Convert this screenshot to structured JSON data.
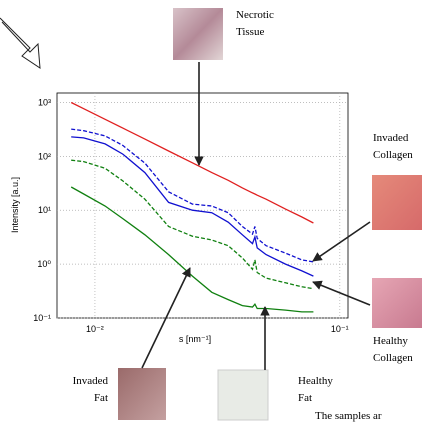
{
  "chart_data": {
    "type": "line",
    "log_x": true,
    "log_y": true,
    "grid": true,
    "ylabel": "Intensity [a.u.]",
    "xlabel": "s [nm⁻¹]",
    "xlim": [
      0.007,
      0.108
    ],
    "ylim": [
      0.1,
      1500
    ],
    "xticks": [
      {
        "value": 0.01,
        "label": "10⁻²"
      },
      {
        "value": 0.1,
        "label": "10⁻¹"
      }
    ],
    "yticks": [
      {
        "value": 0.1,
        "label": "10⁻¹"
      },
      {
        "value": 1,
        "label": "10⁰"
      },
      {
        "value": 10,
        "label": "10¹"
      },
      {
        "value": 100,
        "label": "10²"
      },
      {
        "value": 1000,
        "label": "10³"
      }
    ],
    "x": [
      0.008,
      0.009,
      0.011,
      0.013,
      0.016,
      0.02,
      0.025,
      0.03,
      0.035,
      0.04,
      0.044,
      0.045,
      0.046,
      0.05,
      0.06,
      0.07,
      0.078
    ],
    "series": [
      {
        "color": "#e02020",
        "style": "solid",
        "values": [
          1000,
          766,
          487,
          334,
          209,
          126,
          76,
          50,
          36,
          26,
          21,
          20,
          19,
          16,
          10.5,
          7.5,
          5.8
        ]
      },
      {
        "color": "#1010d0",
        "style": "dashed",
        "values": [
          320,
          300,
          240,
          160,
          75,
          22,
          13,
          12,
          9,
          5,
          3.6,
          5,
          3,
          2.2,
          1.6,
          1.2,
          1.1
        ]
      },
      {
        "color": "#1010d0",
        "style": "solid",
        "values": [
          230,
          220,
          170,
          110,
          50,
          14,
          10,
          9,
          6,
          3.5,
          2.4,
          3.2,
          2,
          1.5,
          1,
          0.75,
          0.6
        ]
      },
      {
        "color": "#108010",
        "style": "dashed",
        "values": [
          85,
          80,
          60,
          35,
          16,
          5,
          3.3,
          2.8,
          2.2,
          1.3,
          0.8,
          1.2,
          0.7,
          0.55,
          0.45,
          0.38,
          0.35
        ]
      },
      {
        "color": "#108010",
        "style": "solid",
        "values": [
          27,
          20,
          12,
          7,
          3.5,
          1.5,
          0.6,
          0.3,
          0.22,
          0.17,
          0.16,
          0.18,
          0.15,
          0.15,
          0.14,
          0.13,
          0.13
        ]
      }
    ],
    "annotations": [
      {
        "lines": [
          "Necrotic",
          "Tissue"
        ]
      },
      {
        "lines": [
          "Invaded",
          "Collagen"
        ]
      },
      {
        "lines": [
          "Healthy",
          "Collagen"
        ]
      },
      {
        "lines": [
          "Invaded",
          "Fat"
        ]
      },
      {
        "lines": [
          "Healthy",
          "Fat"
        ]
      },
      {
        "lines": [
          "The samples ar"
        ]
      }
    ]
  }
}
